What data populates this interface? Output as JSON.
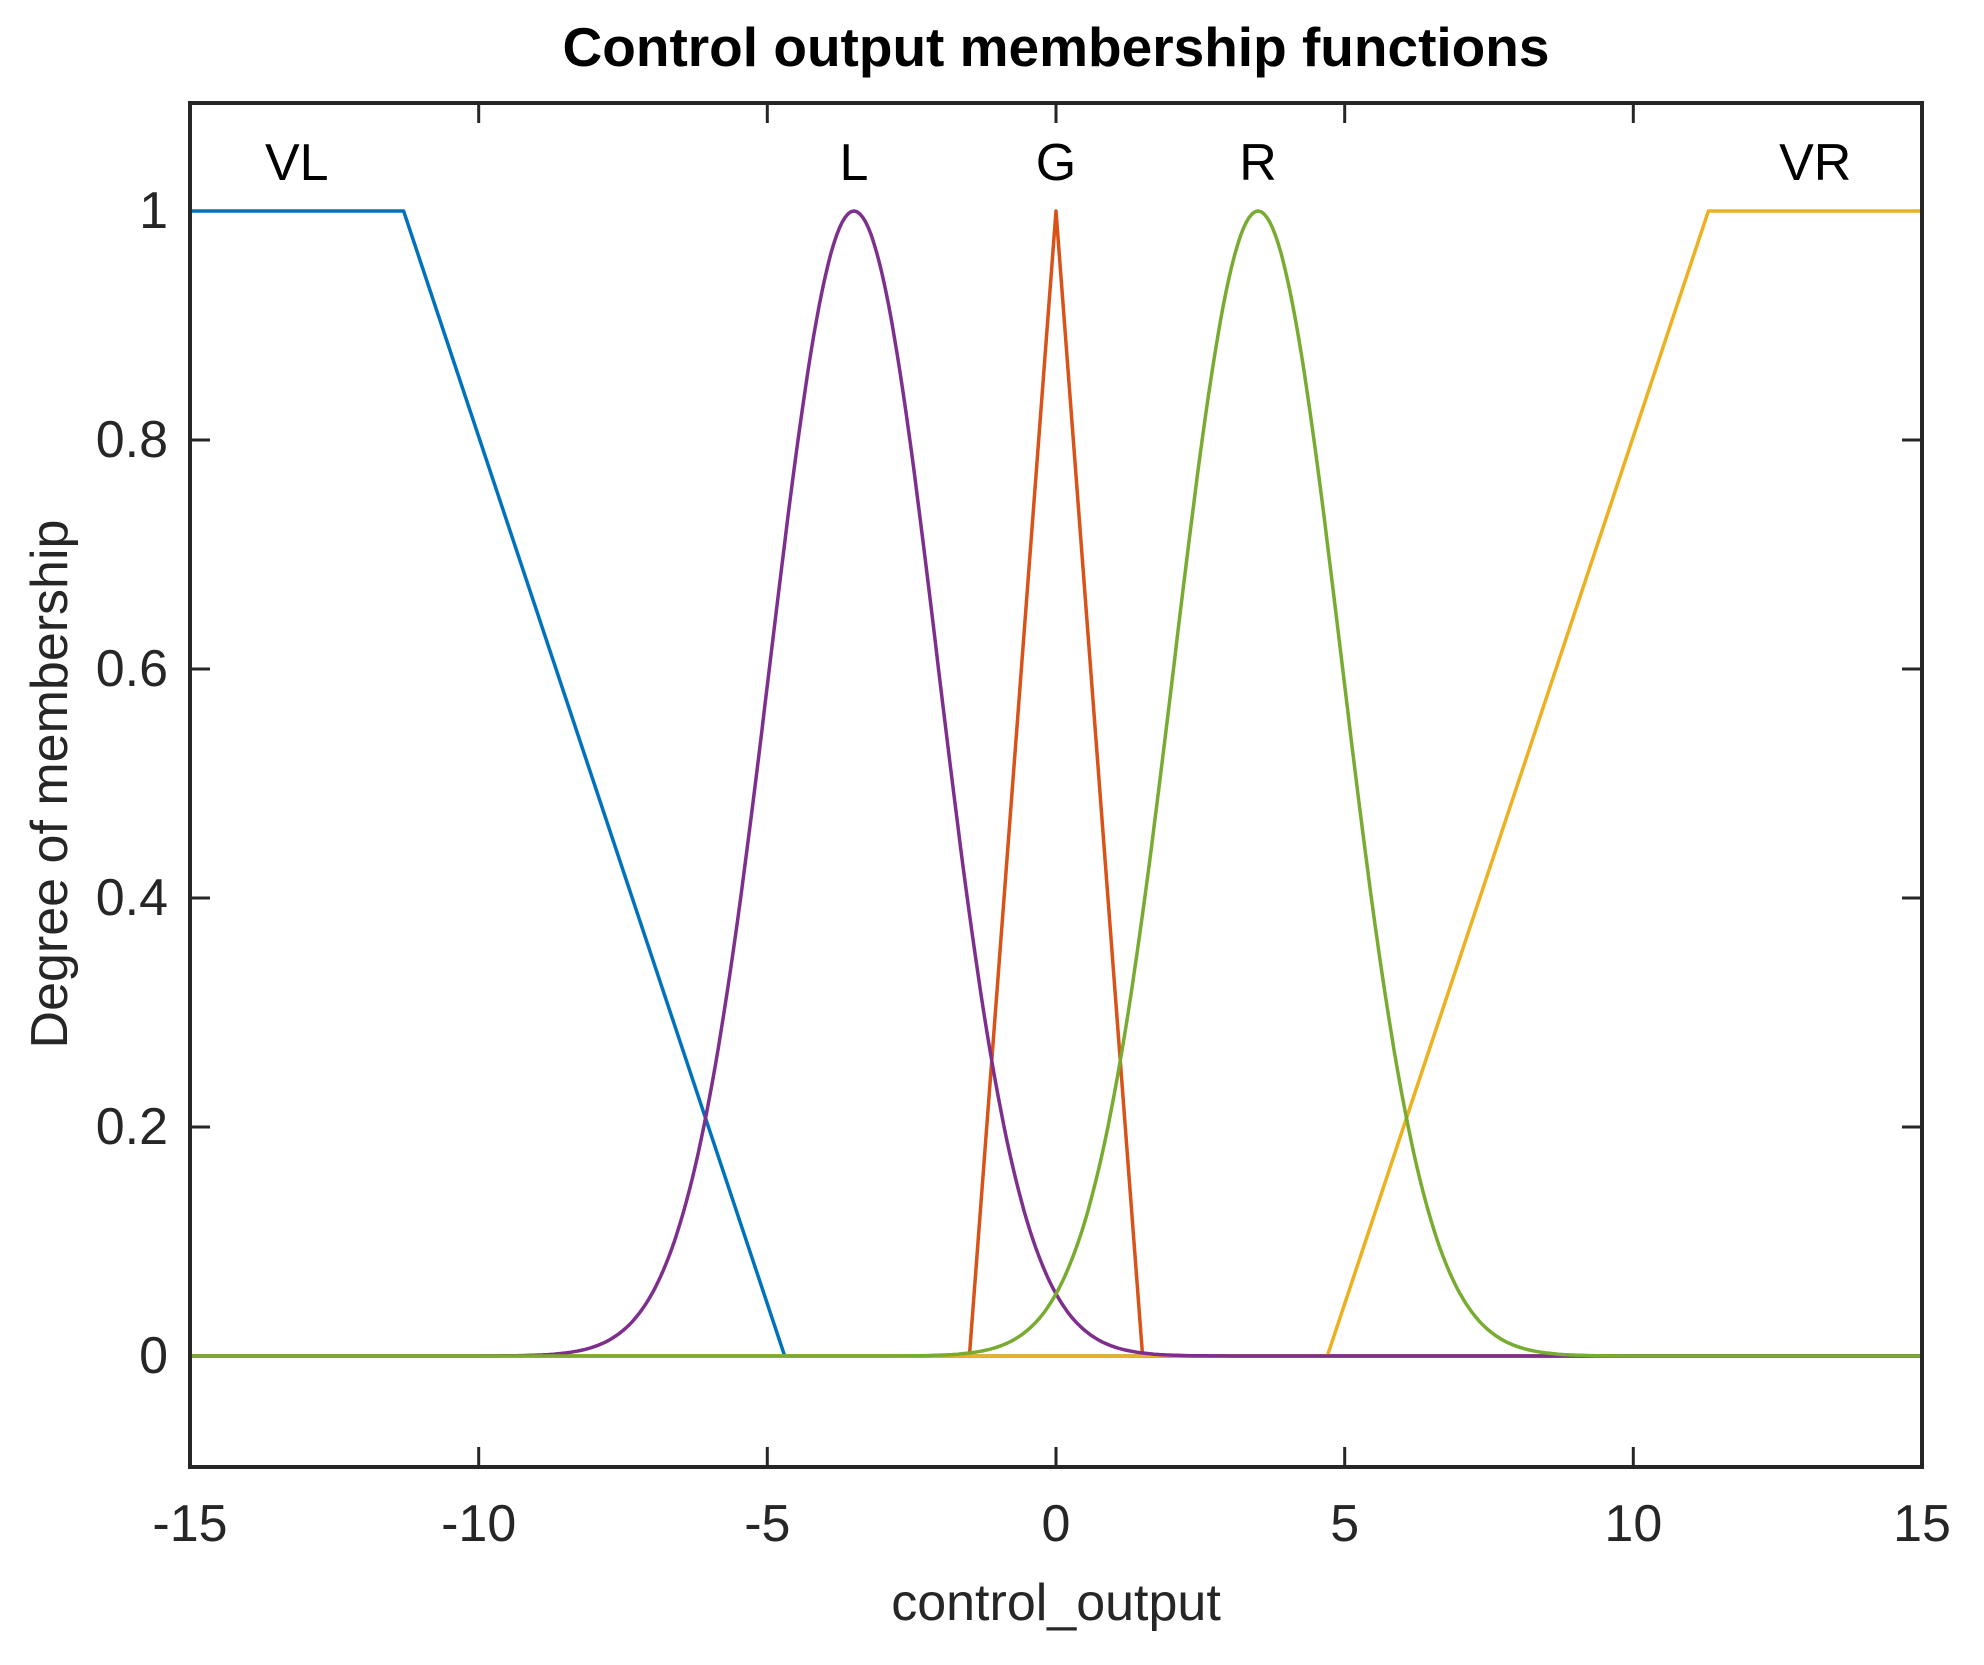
{
  "chart_data": {
    "type": "line",
    "title": "Control output membership functions",
    "xlabel": "control_output",
    "ylabel": "Degree of membership",
    "xlim": [
      -15,
      15
    ],
    "ylim": [
      -0.1,
      1.1
    ],
    "xticks": [
      -15,
      -10,
      -5,
      0,
      5,
      10,
      15
    ],
    "yticks": [
      0,
      0.2,
      0.4,
      0.6,
      0.8,
      1
    ],
    "grid": false,
    "legend": false,
    "axis_color": "#262626",
    "background_color": "#ffffff",
    "series": [
      {
        "name": "VL",
        "shape": "trapezoid",
        "color": "#0072BD",
        "points": [
          [
            -15,
            1
          ],
          [
            -11.3,
            1
          ],
          [
            -4.7,
            0
          ],
          [
            15,
            0
          ]
        ]
      },
      {
        "name": "G",
        "shape": "triangle",
        "color": "#D95319",
        "points": [
          [
            -15,
            0
          ],
          [
            -1.5,
            0
          ],
          [
            0,
            1
          ],
          [
            1.5,
            0
          ],
          [
            15,
            0
          ]
        ]
      },
      {
        "name": "VR",
        "shape": "trapezoid",
        "color": "#EDB120",
        "points": [
          [
            -15,
            0
          ],
          [
            4.7,
            0
          ],
          [
            11.3,
            1
          ],
          [
            15,
            1
          ]
        ]
      },
      {
        "name": "L",
        "shape": "gaussian",
        "color": "#7E2F8E",
        "center": -3.5,
        "sigma": 1.45,
        "peak": 1
      },
      {
        "name": "R",
        "shape": "gaussian",
        "color": "#77AC30",
        "center": 3.5,
        "sigma": 1.45,
        "peak": 1
      }
    ],
    "curve_labels": [
      {
        "text": "VL",
        "x": -13.15
      },
      {
        "text": "L",
        "x": -3.5
      },
      {
        "text": "G",
        "x": 0
      },
      {
        "text": "R",
        "x": 3.5
      },
      {
        "text": "VR",
        "x": 13.15
      }
    ]
  }
}
